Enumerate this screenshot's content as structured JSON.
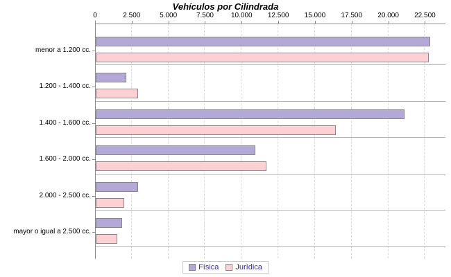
{
  "title": "Vehículos por Cilindrada",
  "colors": {
    "fisica_fill": "#b4a9d6",
    "fisica_border": "#858585",
    "juridica_fill": "#fdd1d4",
    "juridica_border": "#8f8486",
    "legend_text": "#3b2e91",
    "axis_line": "#8c8c8c",
    "gridline": "#d9d9d9",
    "row_separator": "#b4b4b4",
    "label_text": "#000000"
  },
  "chart_data": {
    "type": "bar",
    "orientation": "horizontal",
    "title": "Vehículos por Cilindrada",
    "xlabel": "",
    "ylabel": "",
    "grid": "vertical-dashed",
    "legend_position": "bottom-center",
    "xlim": [
      0,
      23900
    ],
    "x_ticks": [
      "0",
      "2.500",
      "5.000",
      "7.500",
      "10.000",
      "12.500",
      "15.000",
      "17.500",
      "20.000",
      "22.500"
    ],
    "x_tick_values": [
      0,
      2500,
      5000,
      7500,
      10000,
      12500,
      15000,
      17500,
      20000,
      22500
    ],
    "categories": [
      "menor a 1.200 cc.",
      "1.200 - 1.400 cc.",
      "1.400 - 1.600 cc.",
      "1.600 - 2.000 cc.",
      "2.000 - 2.500 cc.",
      "mayor o igual a 2.500 cc."
    ],
    "series": [
      {
        "name": "Física",
        "color": "#b4a9d6",
        "border": "#858585",
        "values": [
          22750,
          2050,
          21000,
          10850,
          2850,
          1750
        ]
      },
      {
        "name": "Jurídica",
        "color": "#fdd1d4",
        "border": "#8f8486",
        "values": [
          22650,
          2850,
          16350,
          11600,
          1900,
          1400
        ]
      }
    ]
  },
  "legend": {
    "items": [
      {
        "label": "Física",
        "color": "#b4a9d6",
        "border": "#858585"
      },
      {
        "label": "Jurídica",
        "color": "#fdd1d4",
        "border": "#8f8486"
      }
    ]
  }
}
